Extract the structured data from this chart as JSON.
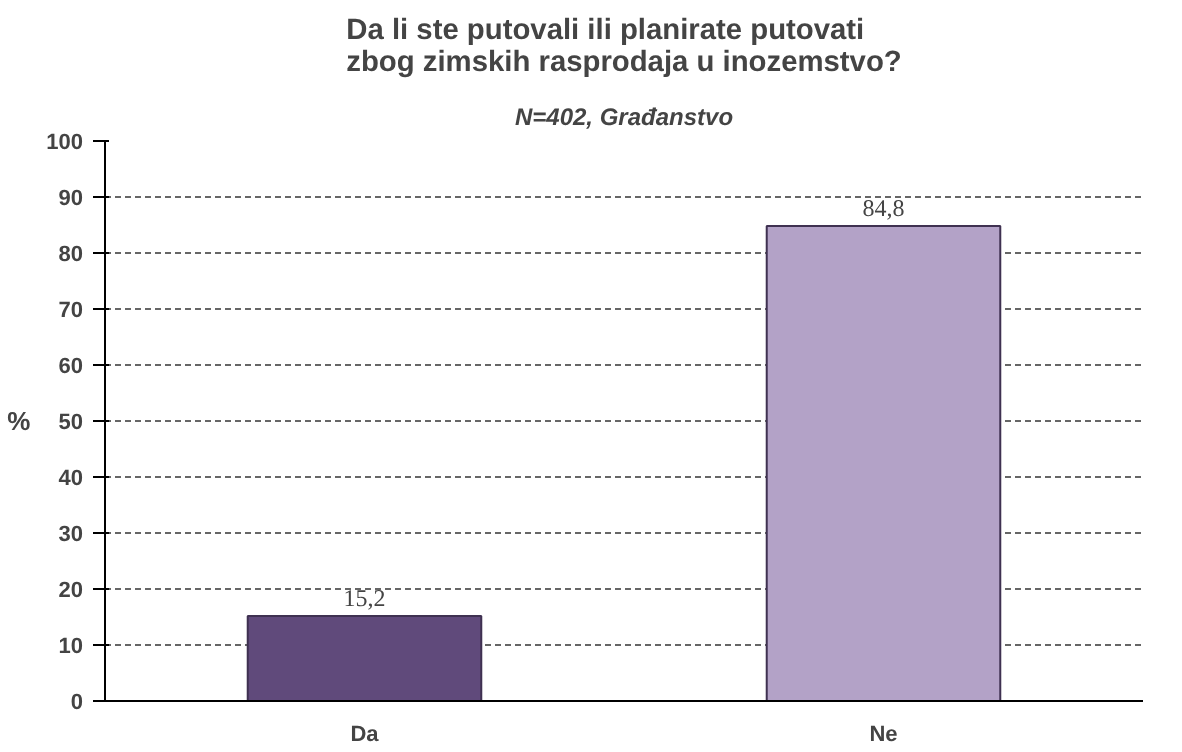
{
  "chart_data": {
    "type": "bar",
    "title": "Da li ste putovali ili planirate putovati\nzbog zimskih rasprodaja u inozemstvo?",
    "subtitle": "N=402, Građanstvo",
    "ylabel": "%",
    "categories": [
      "Da",
      "Ne"
    ],
    "values": [
      15.2,
      84.8
    ],
    "colors": [
      "#604a7b",
      "#b3a2c7"
    ],
    "value_labels": [
      "15,2",
      "84,8"
    ],
    "ylim": [
      0,
      100
    ],
    "yticks": [
      0,
      10,
      20,
      30,
      40,
      50,
      60,
      70,
      80,
      90,
      100
    ],
    "grid": "y"
  }
}
